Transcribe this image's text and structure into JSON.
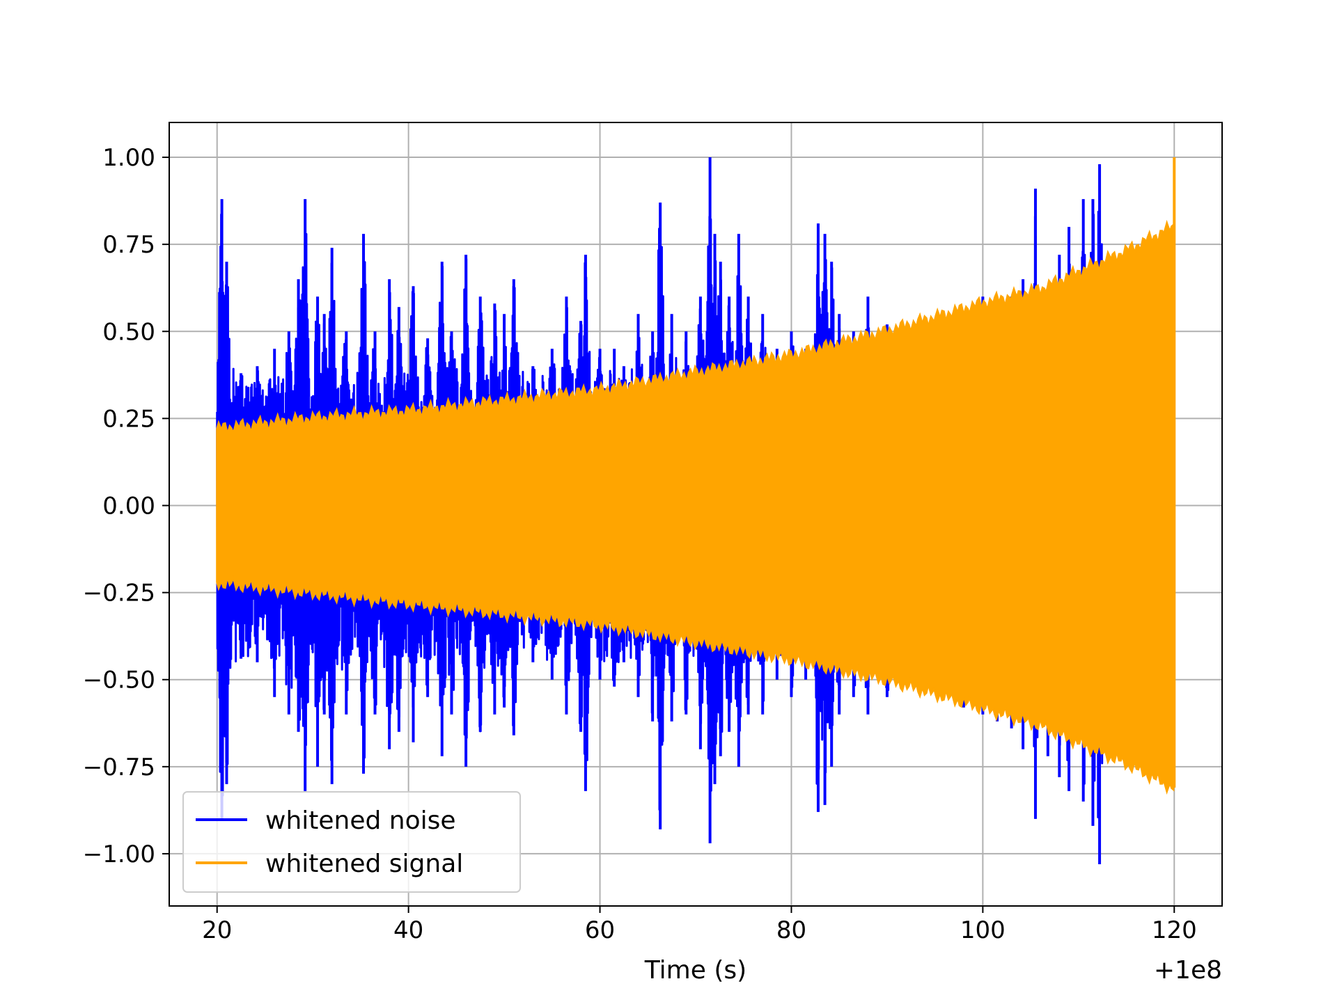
{
  "chart_data": {
    "type": "line",
    "title": "",
    "xlabel": "Time (s)",
    "ylabel": "",
    "x_offset_label": "+1e8",
    "xlim": [
      15,
      125
    ],
    "ylim": [
      -1.15,
      1.1
    ],
    "grid": true,
    "legend_position": "lower-left",
    "x_ticks": [
      {
        "value": 20,
        "label": "20"
      },
      {
        "value": 40,
        "label": "40"
      },
      {
        "value": 60,
        "label": "60"
      },
      {
        "value": 80,
        "label": "80"
      },
      {
        "value": 100,
        "label": "100"
      },
      {
        "value": 120,
        "label": "120"
      }
    ],
    "y_ticks": [
      {
        "value": 1.0,
        "label": "1.00"
      },
      {
        "value": 0.75,
        "label": "0.75"
      },
      {
        "value": 0.5,
        "label": "0.50"
      },
      {
        "value": 0.25,
        "label": "0.25"
      },
      {
        "value": 0.0,
        "label": "0.00"
      },
      {
        "value": -0.25,
        "label": "−0.25"
      },
      {
        "value": -0.5,
        "label": "−0.50"
      },
      {
        "value": -0.75,
        "label": "−0.75"
      },
      {
        "value": -1.0,
        "label": "−1.00"
      }
    ],
    "series": [
      {
        "name": "whitened noise",
        "color": "#0000ff",
        "kind": "spiky-oscillation",
        "x_range": [
          20,
          112.5
        ],
        "peaks": [
          [
            20.5,
            0.88
          ],
          [
            21.0,
            0.7
          ],
          [
            22.5,
            0.38
          ],
          [
            24.2,
            0.4
          ],
          [
            26.0,
            0.45
          ],
          [
            27.5,
            0.5
          ],
          [
            28.5,
            0.65
          ],
          [
            29.2,
            0.88
          ],
          [
            30.5,
            0.6
          ],
          [
            31.2,
            0.55
          ],
          [
            32.0,
            0.74
          ],
          [
            33.5,
            0.5
          ],
          [
            35.3,
            0.78
          ],
          [
            36.5,
            0.5
          ],
          [
            38.0,
            0.65
          ],
          [
            39.0,
            0.57
          ],
          [
            40.5,
            0.63
          ],
          [
            42.0,
            0.48
          ],
          [
            43.5,
            0.7
          ],
          [
            44.5,
            0.5
          ],
          [
            46.0,
            0.72
          ],
          [
            47.5,
            0.6
          ],
          [
            49.0,
            0.58
          ],
          [
            50.0,
            0.55
          ],
          [
            51.0,
            0.65
          ],
          [
            53.0,
            0.4
          ],
          [
            55.0,
            0.45
          ],
          [
            56.5,
            0.6
          ],
          [
            58.0,
            0.53
          ],
          [
            58.5,
            0.72
          ],
          [
            60.0,
            0.45
          ],
          [
            61.5,
            0.45
          ],
          [
            62.5,
            0.4
          ],
          [
            64.0,
            0.55
          ],
          [
            65.5,
            0.5
          ],
          [
            66.3,
            0.87
          ],
          [
            67.5,
            0.55
          ],
          [
            69.0,
            0.5
          ],
          [
            70.5,
            0.6
          ],
          [
            71.5,
            1.0
          ],
          [
            72.0,
            0.78
          ],
          [
            72.6,
            0.7
          ],
          [
            73.5,
            0.6
          ],
          [
            74.5,
            0.78
          ],
          [
            75.5,
            0.6
          ],
          [
            77.0,
            0.55
          ],
          [
            78.5,
            0.45
          ],
          [
            80.0,
            0.5
          ],
          [
            81.5,
            0.45
          ],
          [
            82.8,
            0.81
          ],
          [
            83.5,
            0.78
          ],
          [
            84.2,
            0.7
          ],
          [
            85.0,
            0.55
          ],
          [
            86.5,
            0.5
          ],
          [
            88.0,
            0.6
          ],
          [
            90.0,
            0.52
          ],
          [
            92.0,
            0.48
          ],
          [
            94.0,
            0.53
          ],
          [
            96.0,
            0.5
          ],
          [
            98.0,
            0.55
          ],
          [
            100.0,
            0.6
          ],
          [
            101.5,
            0.58
          ],
          [
            103.0,
            0.6
          ],
          [
            104.2,
            0.65
          ],
          [
            105.5,
            0.91
          ],
          [
            106.8,
            0.62
          ],
          [
            108.0,
            0.72
          ],
          [
            109.0,
            0.8
          ],
          [
            110.5,
            0.88
          ],
          [
            111.5,
            0.88
          ],
          [
            112.2,
            0.98
          ]
        ],
        "troughs": [
          [
            20.5,
            -0.9
          ],
          [
            21.0,
            -0.8
          ],
          [
            22.5,
            -0.44
          ],
          [
            24.2,
            -0.45
          ],
          [
            26.0,
            -0.55
          ],
          [
            27.5,
            -0.6
          ],
          [
            28.5,
            -0.65
          ],
          [
            29.2,
            -0.82
          ],
          [
            30.5,
            -0.75
          ],
          [
            31.2,
            -0.6
          ],
          [
            32.0,
            -0.8
          ],
          [
            33.5,
            -0.6
          ],
          [
            35.3,
            -0.77
          ],
          [
            36.5,
            -0.6
          ],
          [
            38.0,
            -0.7
          ],
          [
            39.0,
            -0.65
          ],
          [
            40.5,
            -0.68
          ],
          [
            42.0,
            -0.55
          ],
          [
            43.5,
            -0.72
          ],
          [
            44.5,
            -0.6
          ],
          [
            46.0,
            -0.75
          ],
          [
            47.5,
            -0.65
          ],
          [
            49.0,
            -0.6
          ],
          [
            50.0,
            -0.58
          ],
          [
            51.0,
            -0.66
          ],
          [
            53.0,
            -0.45
          ],
          [
            55.0,
            -0.5
          ],
          [
            56.5,
            -0.6
          ],
          [
            58.0,
            -0.65
          ],
          [
            58.5,
            -0.82
          ],
          [
            60.0,
            -0.5
          ],
          [
            61.5,
            -0.52
          ],
          [
            62.5,
            -0.45
          ],
          [
            64.0,
            -0.55
          ],
          [
            65.5,
            -0.62
          ],
          [
            66.3,
            -0.93
          ],
          [
            67.5,
            -0.62
          ],
          [
            69.0,
            -0.6
          ],
          [
            70.5,
            -0.7
          ],
          [
            71.5,
            -0.97
          ],
          [
            72.0,
            -0.8
          ],
          [
            72.6,
            -0.72
          ],
          [
            73.5,
            -0.65
          ],
          [
            74.5,
            -0.75
          ],
          [
            75.5,
            -0.6
          ],
          [
            77.0,
            -0.6
          ],
          [
            78.5,
            -0.5
          ],
          [
            80.0,
            -0.55
          ],
          [
            81.5,
            -0.5
          ],
          [
            82.8,
            -0.88
          ],
          [
            83.5,
            -0.86
          ],
          [
            84.2,
            -0.75
          ],
          [
            85.0,
            -0.6
          ],
          [
            86.5,
            -0.55
          ],
          [
            88.0,
            -0.6
          ],
          [
            90.0,
            -0.55
          ],
          [
            92.0,
            -0.5
          ],
          [
            94.0,
            -0.52
          ],
          [
            96.0,
            -0.53
          ],
          [
            98.0,
            -0.58
          ],
          [
            100.0,
            -0.6
          ],
          [
            101.5,
            -0.62
          ],
          [
            103.0,
            -0.64
          ],
          [
            104.2,
            -0.7
          ],
          [
            105.5,
            -0.9
          ],
          [
            106.8,
            -0.72
          ],
          [
            108.0,
            -0.78
          ],
          [
            109.0,
            -0.82
          ],
          [
            110.5,
            -0.85
          ],
          [
            111.5,
            -0.92
          ],
          [
            112.2,
            -1.03
          ]
        ]
      },
      {
        "name": "whitened signal",
        "color": "#ffa500",
        "kind": "chirp-envelope",
        "x_range": [
          20,
          120
        ],
        "envelope_upper": [
          [
            20,
            0.22
          ],
          [
            30,
            0.25
          ],
          [
            40,
            0.27
          ],
          [
            50,
            0.3
          ],
          [
            60,
            0.33
          ],
          [
            70,
            0.38
          ],
          [
            80,
            0.43
          ],
          [
            90,
            0.5
          ],
          [
            100,
            0.58
          ],
          [
            106,
            0.62
          ],
          [
            110,
            0.67
          ],
          [
            115,
            0.73
          ],
          [
            119.9,
            0.8
          ],
          [
            120,
            1.0
          ]
        ],
        "envelope_lower": [
          [
            20,
            -0.22
          ],
          [
            30,
            -0.25
          ],
          [
            40,
            -0.28
          ],
          [
            50,
            -0.31
          ],
          [
            60,
            -0.34
          ],
          [
            70,
            -0.39
          ],
          [
            80,
            -0.44
          ],
          [
            90,
            -0.5
          ],
          [
            100,
            -0.58
          ],
          [
            106,
            -0.63
          ],
          [
            110,
            -0.68
          ],
          [
            115,
            -0.74
          ],
          [
            119.9,
            -0.81
          ],
          [
            120,
            -0.81
          ]
        ]
      }
    ]
  }
}
